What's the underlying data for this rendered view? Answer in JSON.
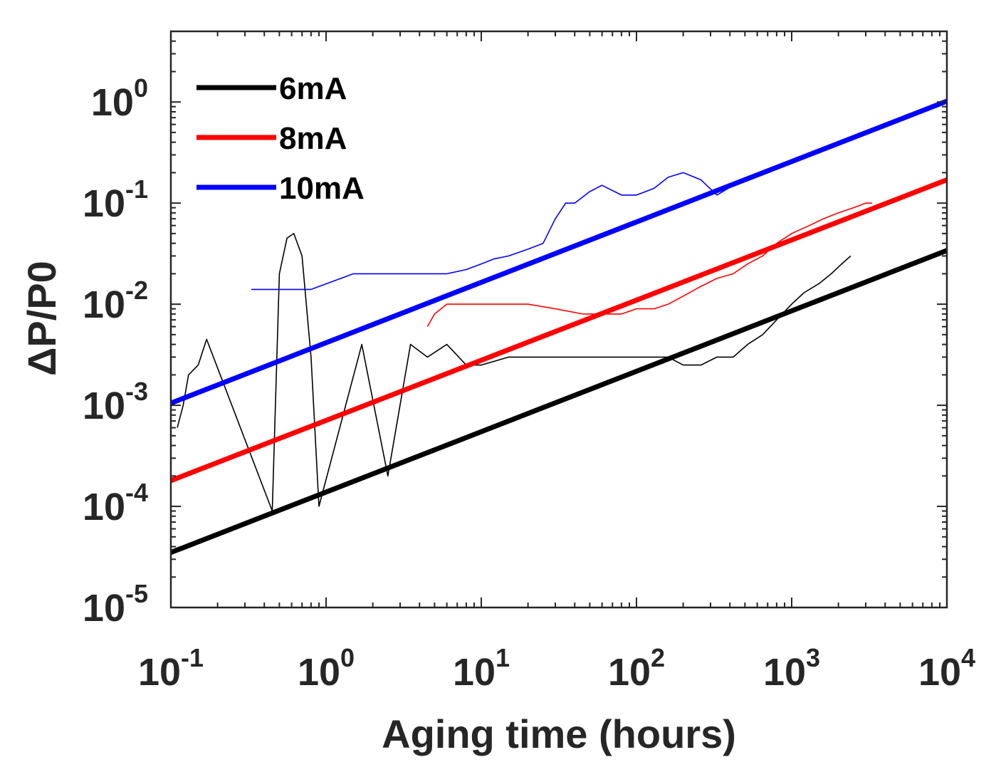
{
  "chart_data": {
    "type": "line",
    "title": "",
    "xlabel": "Aging time (hours)",
    "ylabel": "ΔP/P0",
    "xscale": "log",
    "yscale": "log",
    "xlim": [
      0.1,
      10000
    ],
    "ylim": [
      1e-05,
      5
    ],
    "xticks": [
      {
        "value": 0.1,
        "base": "10",
        "exp": "-1"
      },
      {
        "value": 1,
        "base": "10",
        "exp": "0"
      },
      {
        "value": 10,
        "base": "10",
        "exp": "1"
      },
      {
        "value": 100,
        "base": "10",
        "exp": "2"
      },
      {
        "value": 1000,
        "base": "10",
        "exp": "3"
      },
      {
        "value": 10000,
        "base": "10",
        "exp": "4"
      }
    ],
    "yticks": [
      {
        "value": 1e-05,
        "base": "10",
        "exp": "-5"
      },
      {
        "value": 0.0001,
        "base": "10",
        "exp": "-4"
      },
      {
        "value": 0.001,
        "base": "10",
        "exp": "-3"
      },
      {
        "value": 0.01,
        "base": "10",
        "exp": "-2"
      },
      {
        "value": 0.1,
        "base": "10",
        "exp": "-1"
      },
      {
        "value": 1,
        "base": "10",
        "exp": "0"
      }
    ],
    "grid": false,
    "legend_position": "top-left",
    "series": [
      {
        "name": "6mA",
        "color": "#000000",
        "fit": {
          "x": [
            0.1,
            10000
          ],
          "y": [
            3.5e-05,
            0.034
          ]
        },
        "measured": {
          "x": [
            0.11,
            0.12,
            0.13,
            0.15,
            0.17,
            0.45,
            0.5,
            0.56,
            0.62,
            0.7,
            0.8,
            0.9,
            1.7,
            2.5,
            3.5,
            4.5,
            6,
            8,
            10,
            15,
            20,
            30,
            45,
            60,
            80,
            100,
            130,
            160,
            200,
            260,
            330,
            420,
            520,
            650,
            800,
            1000,
            1200,
            1500,
            1800,
            2100,
            2400
          ],
          "y": [
            0.0006,
            0.001,
            0.002,
            0.0025,
            0.0045,
            9e-05,
            0.02,
            0.045,
            0.05,
            0.03,
            0.003,
            0.0001,
            0.004,
            0.0002,
            0.004,
            0.003,
            0.004,
            0.0025,
            0.0025,
            0.003,
            0.003,
            0.003,
            0.003,
            0.003,
            0.003,
            0.003,
            0.003,
            0.003,
            0.0025,
            0.0025,
            0.003,
            0.003,
            0.004,
            0.005,
            0.007,
            0.01,
            0.013,
            0.016,
            0.02,
            0.025,
            0.03
          ]
        }
      },
      {
        "name": "8mA",
        "color": "#ff0000",
        "fit": {
          "x": [
            0.1,
            10000
          ],
          "y": [
            0.00018,
            0.17
          ]
        },
        "measured": {
          "x": [
            4.5,
            5,
            6,
            8,
            10,
            15,
            20,
            30,
            45,
            60,
            80,
            100,
            130,
            160,
            200,
            260,
            330,
            420,
            520,
            650,
            800,
            1000,
            1300,
            1600,
            2000,
            2500,
            3000,
            3300
          ],
          "y": [
            0.006,
            0.008,
            0.01,
            0.01,
            0.01,
            0.01,
            0.01,
            0.009,
            0.008,
            0.008,
            0.008,
            0.009,
            0.009,
            0.01,
            0.012,
            0.015,
            0.018,
            0.02,
            0.025,
            0.03,
            0.04,
            0.05,
            0.06,
            0.07,
            0.08,
            0.09,
            0.1,
            0.1
          ]
        }
      },
      {
        "name": "10mA",
        "color": "#0000ff",
        "fit": {
          "x": [
            0.1,
            10000
          ],
          "y": [
            0.00105,
            1.02
          ]
        },
        "measured": {
          "x": [
            0.33,
            0.45,
            0.8,
            1.5,
            2,
            3,
            4,
            6,
            8,
            10,
            12,
            15,
            20,
            25,
            30,
            35,
            40,
            50,
            60,
            80,
            100,
            130,
            160,
            200,
            260,
            330,
            420,
            520,
            650,
            800,
            1000,
            1300,
            1600,
            2000,
            2400
          ],
          "y": [
            0.014,
            0.014,
            0.014,
            0.02,
            0.02,
            0.02,
            0.02,
            0.02,
            0.022,
            0.025,
            0.028,
            0.03,
            0.035,
            0.04,
            0.07,
            0.1,
            0.1,
            0.13,
            0.15,
            0.12,
            0.12,
            0.14,
            0.18,
            0.2,
            0.17,
            0.12,
            0.15,
            0.17,
            0.2,
            0.22,
            0.25,
            0.3,
            0.35,
            0.4,
            0.45
          ]
        }
      }
    ]
  }
}
